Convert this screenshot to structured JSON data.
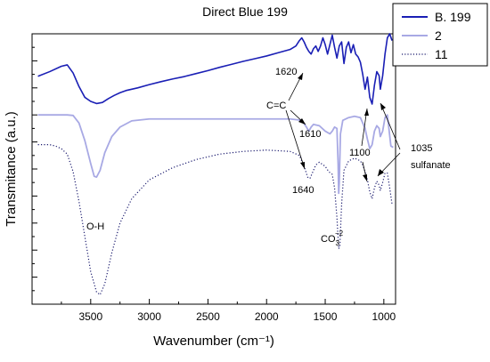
{
  "chart_data": {
    "type": "line",
    "title": "Direct Blue 199",
    "xlabel": "Wavenumber (cm⁻¹)",
    "ylabel": "Transmitance (a.u.)",
    "xlim": [
      4000,
      900
    ],
    "ylim": [
      0,
      10
    ],
    "x_reversed": true,
    "xticks": [
      3500,
      3000,
      2500,
      2000,
      1500,
      1000
    ],
    "y_tick_labels_shown": false,
    "grid": false,
    "legend": "top-right",
    "series": [
      {
        "name": "B. 199",
        "color": "#1a1fb5",
        "style": "solid",
        "points": [
          [
            3950,
            8.43
          ],
          [
            3850,
            8.6
          ],
          [
            3750,
            8.8
          ],
          [
            3700,
            8.85
          ],
          [
            3650,
            8.55
          ],
          [
            3600,
            8.05
          ],
          [
            3550,
            7.65
          ],
          [
            3500,
            7.5
          ],
          [
            3450,
            7.42
          ],
          [
            3400,
            7.46
          ],
          [
            3350,
            7.6
          ],
          [
            3300,
            7.72
          ],
          [
            3250,
            7.82
          ],
          [
            3200,
            7.9
          ],
          [
            3100,
            8.0
          ],
          [
            3000,
            8.12
          ],
          [
            2900,
            8.23
          ],
          [
            2800,
            8.33
          ],
          [
            2700,
            8.42
          ],
          [
            2600,
            8.53
          ],
          [
            2500,
            8.64
          ],
          [
            2400,
            8.76
          ],
          [
            2300,
            8.87
          ],
          [
            2200,
            8.98
          ],
          [
            2100,
            9.08
          ],
          [
            2000,
            9.18
          ],
          [
            1900,
            9.3
          ],
          [
            1800,
            9.42
          ],
          [
            1750,
            9.55
          ],
          [
            1720,
            9.75
          ],
          [
            1700,
            9.85
          ],
          [
            1680,
            9.7
          ],
          [
            1660,
            9.5
          ],
          [
            1640,
            9.35
          ],
          [
            1620,
            9.25
          ],
          [
            1600,
            9.45
          ],
          [
            1580,
            9.55
          ],
          [
            1560,
            9.35
          ],
          [
            1540,
            9.55
          ],
          [
            1520,
            9.85
          ],
          [
            1500,
            9.6
          ],
          [
            1480,
            9.25
          ],
          [
            1460,
            9.6
          ],
          [
            1440,
            9.95
          ],
          [
            1420,
            9.5
          ],
          [
            1400,
            9.1
          ],
          [
            1380,
            9.55
          ],
          [
            1360,
            9.7
          ],
          [
            1340,
            8.9
          ],
          [
            1320,
            9.5
          ],
          [
            1300,
            9.7
          ],
          [
            1280,
            9.3
          ],
          [
            1260,
            9.6
          ],
          [
            1240,
            9.25
          ],
          [
            1220,
            9.15
          ],
          [
            1200,
            8.95
          ],
          [
            1180,
            8.5
          ],
          [
            1160,
            7.95
          ],
          [
            1140,
            8.4
          ],
          [
            1120,
            7.65
          ],
          [
            1100,
            7.4
          ],
          [
            1080,
            8.1
          ],
          [
            1060,
            8.6
          ],
          [
            1040,
            8.45
          ],
          [
            1030,
            7.95
          ],
          [
            1010,
            8.45
          ],
          [
            990,
            9.25
          ],
          [
            970,
            9.85
          ],
          [
            950,
            10.0
          ],
          [
            930,
            9.75
          ]
        ]
      },
      {
        "name": "2",
        "color": "#a8a9e4",
        "style": "solid",
        "points": [
          [
            3950,
            7.0
          ],
          [
            3800,
            7.0
          ],
          [
            3700,
            7.0
          ],
          [
            3650,
            6.98
          ],
          [
            3600,
            6.7
          ],
          [
            3550,
            6.05
          ],
          [
            3500,
            5.2
          ],
          [
            3470,
            4.73
          ],
          [
            3450,
            4.7
          ],
          [
            3420,
            4.95
          ],
          [
            3380,
            5.6
          ],
          [
            3320,
            6.2
          ],
          [
            3250,
            6.55
          ],
          [
            3150,
            6.78
          ],
          [
            3000,
            6.85
          ],
          [
            2800,
            6.85
          ],
          [
            2500,
            6.85
          ],
          [
            2200,
            6.85
          ],
          [
            2000,
            6.85
          ],
          [
            1800,
            6.85
          ],
          [
            1700,
            6.8
          ],
          [
            1660,
            6.55
          ],
          [
            1640,
            6.4
          ],
          [
            1620,
            6.55
          ],
          [
            1600,
            6.65
          ],
          [
            1550,
            6.6
          ],
          [
            1500,
            6.4
          ],
          [
            1460,
            6.3
          ],
          [
            1440,
            6.4
          ],
          [
            1420,
            6.55
          ],
          [
            1400,
            6.5
          ],
          [
            1390,
            5.2
          ],
          [
            1385,
            4.1
          ],
          [
            1380,
            4.5
          ],
          [
            1370,
            6.3
          ],
          [
            1350,
            6.8
          ],
          [
            1300,
            6.9
          ],
          [
            1250,
            6.95
          ],
          [
            1200,
            6.9
          ],
          [
            1180,
            6.7
          ],
          [
            1160,
            6.5
          ],
          [
            1140,
            6.1
          ],
          [
            1120,
            5.75
          ],
          [
            1100,
            5.9
          ],
          [
            1080,
            6.4
          ],
          [
            1060,
            6.6
          ],
          [
            1040,
            6.5
          ],
          [
            1030,
            6.2
          ],
          [
            1010,
            6.4
          ],
          [
            990,
            6.9
          ],
          [
            970,
            7.0
          ],
          [
            940,
            5.85
          ],
          [
            920,
            5.8
          ]
        ]
      },
      {
        "name": "11",
        "color": "#1a1a6e",
        "style": "dotted",
        "points": [
          [
            3950,
            5.9
          ],
          [
            3850,
            5.9
          ],
          [
            3800,
            5.85
          ],
          [
            3750,
            5.75
          ],
          [
            3700,
            5.55
          ],
          [
            3650,
            4.9
          ],
          [
            3600,
            3.8
          ],
          [
            3550,
            2.5
          ],
          [
            3500,
            1.2
          ],
          [
            3450,
            0.45
          ],
          [
            3420,
            0.35
          ],
          [
            3380,
            0.75
          ],
          [
            3320,
            1.9
          ],
          [
            3250,
            3.0
          ],
          [
            3150,
            3.9
          ],
          [
            3000,
            4.6
          ],
          [
            2800,
            5.05
          ],
          [
            2600,
            5.35
          ],
          [
            2400,
            5.55
          ],
          [
            2200,
            5.65
          ],
          [
            2000,
            5.7
          ],
          [
            1800,
            5.65
          ],
          [
            1720,
            5.5
          ],
          [
            1680,
            5.1
          ],
          [
            1650,
            4.7
          ],
          [
            1630,
            4.65
          ],
          [
            1610,
            4.85
          ],
          [
            1580,
            5.15
          ],
          [
            1550,
            5.25
          ],
          [
            1500,
            5.1
          ],
          [
            1470,
            4.9
          ],
          [
            1440,
            4.8
          ],
          [
            1420,
            4.3
          ],
          [
            1400,
            3.2
          ],
          [
            1385,
            2.05
          ],
          [
            1375,
            2.15
          ],
          [
            1360,
            3.7
          ],
          [
            1340,
            4.95
          ],
          [
            1300,
            5.3
          ],
          [
            1250,
            5.4
          ],
          [
            1200,
            5.3
          ],
          [
            1180,
            5.15
          ],
          [
            1160,
            4.9
          ],
          [
            1140,
            4.6
          ],
          [
            1120,
            4.15
          ],
          [
            1100,
            3.9
          ],
          [
            1080,
            4.3
          ],
          [
            1060,
            4.55
          ],
          [
            1040,
            4.4
          ],
          [
            1030,
            4.2
          ],
          [
            1010,
            4.5
          ],
          [
            990,
            4.85
          ],
          [
            970,
            4.85
          ],
          [
            950,
            4.3
          ],
          [
            930,
            3.7
          ]
        ]
      }
    ],
    "annotations": [
      {
        "text": "1620"
      },
      {
        "text": "C=C"
      },
      {
        "text": "1610"
      },
      {
        "text": "1640"
      },
      {
        "text": "1100"
      },
      {
        "text": "1035"
      },
      {
        "text": "sulfanate"
      },
      {
        "text": "O-H"
      },
      {
        "text": "CO"
      },
      {
        "text": "3"
      },
      {
        "text": "−2"
      }
    ]
  }
}
